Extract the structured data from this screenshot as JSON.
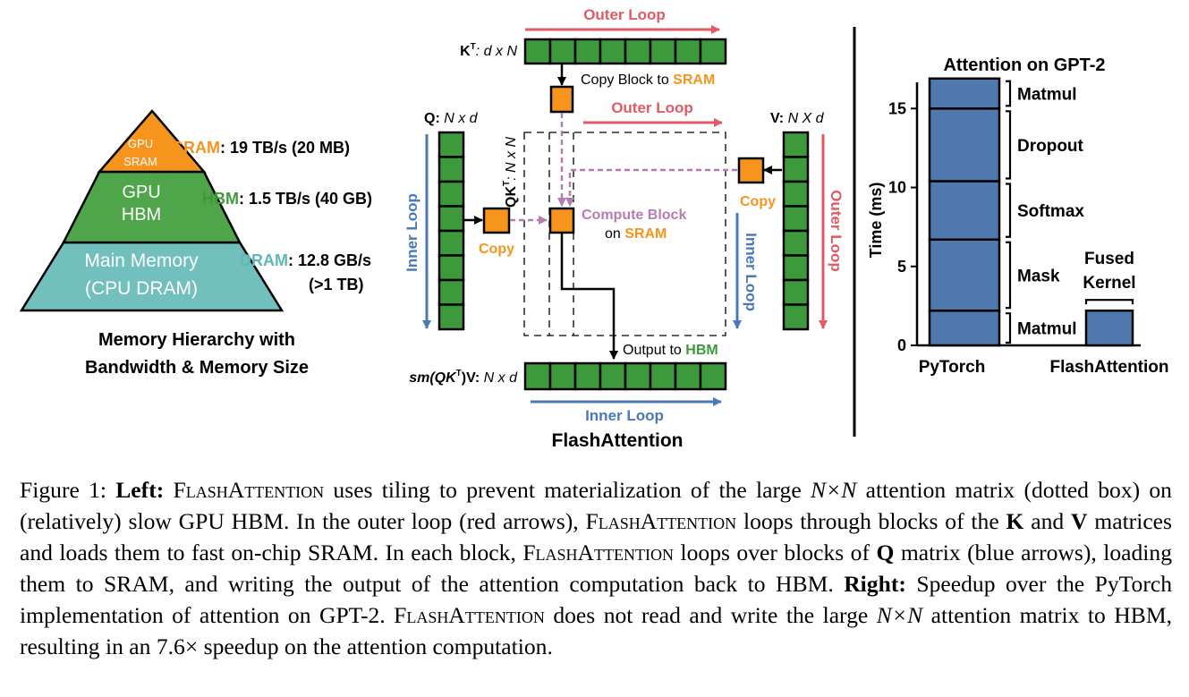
{
  "left": {
    "pyramid": {
      "top_line1": "GPU",
      "top_line2": "SRAM",
      "mid_line1": "GPU",
      "mid_line2": "HBM",
      "bottom_line1": "Main Memory",
      "bottom_line2": "(CPU DRAM)"
    },
    "labels": {
      "sram_name": "SRAM",
      "sram_spec": ": 19 TB/s (20 MB)",
      "hbm_name": "HBM",
      "hbm_spec": ": 1.5 TB/s (40 GB)",
      "dram_name": "DRAM",
      "dram_spec": ": 12.8 GB/s",
      "dram_size": "(>1 TB)"
    },
    "title_line1": "Memory Hierarchy with",
    "title_line2": "Bandwidth & Memory Size",
    "colors": {
      "sram": "#f7941d",
      "hbm": "#4ea54a",
      "dram": "#72c0be"
    }
  },
  "middle": {
    "outer_loop_top": "Outer Loop",
    "kt_label": "K",
    "kt_sup": "T",
    "kt_dims": ": d x N",
    "copy_block_text": "Copy Block to ",
    "copy_block_sram": "SRAM",
    "outer_loop_mid": "Outer Loop",
    "q_label": "Q: ",
    "q_dims": "N x d",
    "v_label": "V: ",
    "v_dims": "N X d",
    "qkt_label": "QK",
    "qkt_sup": "T",
    "qkt_dims": ": N x N",
    "inner_loop_left": "Inner Loop",
    "copy_left": "Copy",
    "copy_right": "Copy",
    "compute_line1": "Compute Block",
    "compute_line2a": "on ",
    "compute_line2b": "SRAM",
    "outer_loop_right": "Outer Loop",
    "inner_loop_right": "Inner Loop",
    "output_text": "Output to ",
    "output_hbm": "HBM",
    "out_label": "sm(QK",
    "out_sup": "T",
    "out_label2": ")V: ",
    "out_dims": "N x d",
    "inner_loop_bottom": "Inner Loop",
    "title": "FlashAttention",
    "colors": {
      "red": "#e05a65",
      "blue": "#4a7ab5",
      "green": "#3c9a3c",
      "orange": "#f7941d",
      "purple": "#b77bb4"
    }
  },
  "chart_data": {
    "type": "bar",
    "title": "Attention on GPT-2",
    "ylabel": "Time (ms)",
    "xlabel": "",
    "ylim": [
      0,
      17
    ],
    "yticks": [
      0,
      5,
      10,
      15
    ],
    "categories": [
      "PyTorch",
      "FlashAttention"
    ],
    "stacks": [
      {
        "category": "PyTorch",
        "segments": [
          {
            "name": "Matmul",
            "value": 2.2
          },
          {
            "name": "Mask",
            "value": 4.5
          },
          {
            "name": "Softmax",
            "value": 3.7
          },
          {
            "name": "Dropout",
            "value": 4.6
          },
          {
            "name": "Matmul",
            "value": 1.9
          }
        ]
      },
      {
        "category": "FlashAttention",
        "label_line1": "Fused",
        "label_line2": "Kernel",
        "segments": [
          {
            "name": "Fused Kernel",
            "value": 2.2
          }
        ]
      }
    ],
    "bar_color": "#4f79ae"
  },
  "caption": {
    "fig": "Figure 1: ",
    "left_label": "Left:",
    "sc": "FlashAttention",
    "t1": " uses tiling to prevent materialization of the large ",
    "nxn": "N×N",
    "t2": " attention matrix (dotted box) on (relatively) slow GPU HBM. In the outer loop (red arrows), ",
    "t3": " loops through blocks of the ",
    "k": "K",
    "and": " and ",
    "v": "V",
    "t4": " matrices and loads them to fast on-chip SRAM. In each block, ",
    "t5": " loops over blocks of ",
    "q": "Q",
    "t6": " matrix (blue arrows), loading them to SRAM, and writing the output of the attention computation back to HBM. ",
    "right_label": "Right:",
    "t7": " Speedup over the PyTorch implementation of attention on GPT-2. ",
    "t8": " does not read and write the large ",
    "t9": " attention matrix to HBM, resulting in an 7.6× speedup on the attention computation."
  }
}
